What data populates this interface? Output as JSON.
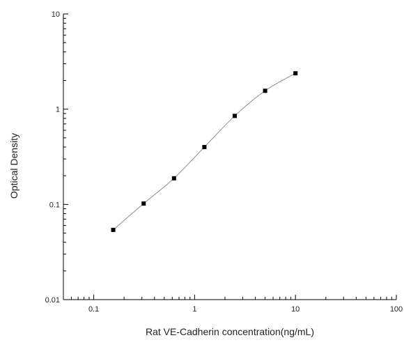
{
  "chart_data": {
    "type": "scatter",
    "title": "",
    "xlabel": "Rat VE-Cadherin concentration(ng/mL)",
    "ylabel": "Optical Density",
    "x_scale": "log",
    "y_scale": "log",
    "xlim": [
      0.05,
      100
    ],
    "ylim": [
      0.01,
      10
    ],
    "x_ticks": [
      {
        "value": 0.1,
        "label": "0.1"
      },
      {
        "value": 1,
        "label": "1"
      },
      {
        "value": 10,
        "label": "10"
      },
      {
        "value": 100,
        "label": "100"
      }
    ],
    "y_ticks": [
      {
        "value": 0.01,
        "label": "0.01"
      },
      {
        "value": 0.1,
        "label": "0.1"
      },
      {
        "value": 1,
        "label": "1"
      },
      {
        "value": 10,
        "label": "10"
      }
    ],
    "grid": false,
    "legend": "none",
    "series": [
      {
        "marker": "square",
        "color": "#000000",
        "curve_color": "#8a8a8a",
        "fit_curve": true,
        "points": [
          {
            "x": 0.156,
            "y": 0.054
          },
          {
            "x": 0.3125,
            "y": 0.102
          },
          {
            "x": 0.625,
            "y": 0.188
          },
          {
            "x": 1.25,
            "y": 0.4
          },
          {
            "x": 2.5,
            "y": 0.85
          },
          {
            "x": 5,
            "y": 1.56
          },
          {
            "x": 10,
            "y": 2.38
          }
        ]
      }
    ]
  }
}
